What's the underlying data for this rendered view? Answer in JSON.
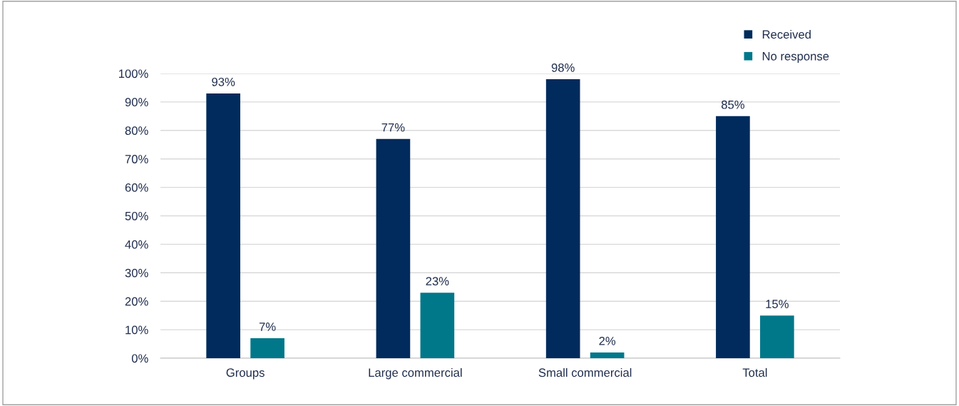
{
  "chart_data": {
    "type": "bar",
    "categories": [
      "Groups",
      "Large commercial",
      "Small commercial",
      "Total"
    ],
    "series": [
      {
        "name": "Received",
        "color": "#002b5c",
        "values": [
          93,
          77,
          98,
          85
        ],
        "value_labels": [
          "93%",
          "77%",
          "98%",
          "85%"
        ]
      },
      {
        "name": "No response",
        "color": "#00788a",
        "values": [
          7,
          23,
          2,
          15
        ],
        "value_labels": [
          "7%",
          "23%",
          "2%",
          "15%"
        ]
      }
    ],
    "ylim": [
      0,
      100
    ],
    "yticks": [
      {
        "value": 0,
        "label": "0%"
      },
      {
        "value": 10,
        "label": "10%"
      },
      {
        "value": 20,
        "label": "20%"
      },
      {
        "value": 30,
        "label": "30%"
      },
      {
        "value": 40,
        "label": "40%"
      },
      {
        "value": 50,
        "label": "50%"
      },
      {
        "value": 60,
        "label": "60%"
      },
      {
        "value": 70,
        "label": "70%"
      },
      {
        "value": 80,
        "label": "80%"
      },
      {
        "value": 90,
        "label": "90%"
      },
      {
        "value": 100,
        "label": "100%"
      }
    ],
    "grid": "y",
    "legend": "top right"
  }
}
